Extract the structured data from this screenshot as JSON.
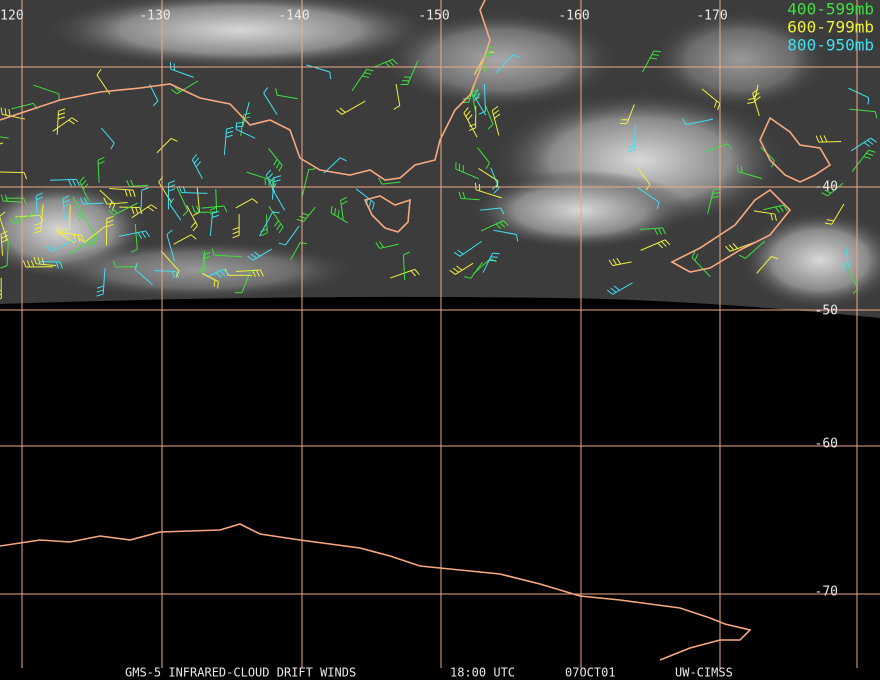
{
  "map": {
    "lon_labels": [
      -120,
      -130,
      -140,
      -150,
      -160,
      -170
    ],
    "lat_labels": [
      -40,
      -50,
      -60,
      -70
    ],
    "legend": [
      {
        "label": "400-599mb",
        "color": "#3fe03f"
      },
      {
        "label": "600-799mb",
        "color": "#f0f040"
      },
      {
        "label": "800-950mb",
        "color": "#40e0f0"
      }
    ],
    "footer": {
      "product": "GMS-5 INFRARED-CLOUD DRIFT WINDS",
      "time": "18:00 UTC",
      "date": "07OCT01",
      "source": "UW-CIMSS"
    }
  }
}
